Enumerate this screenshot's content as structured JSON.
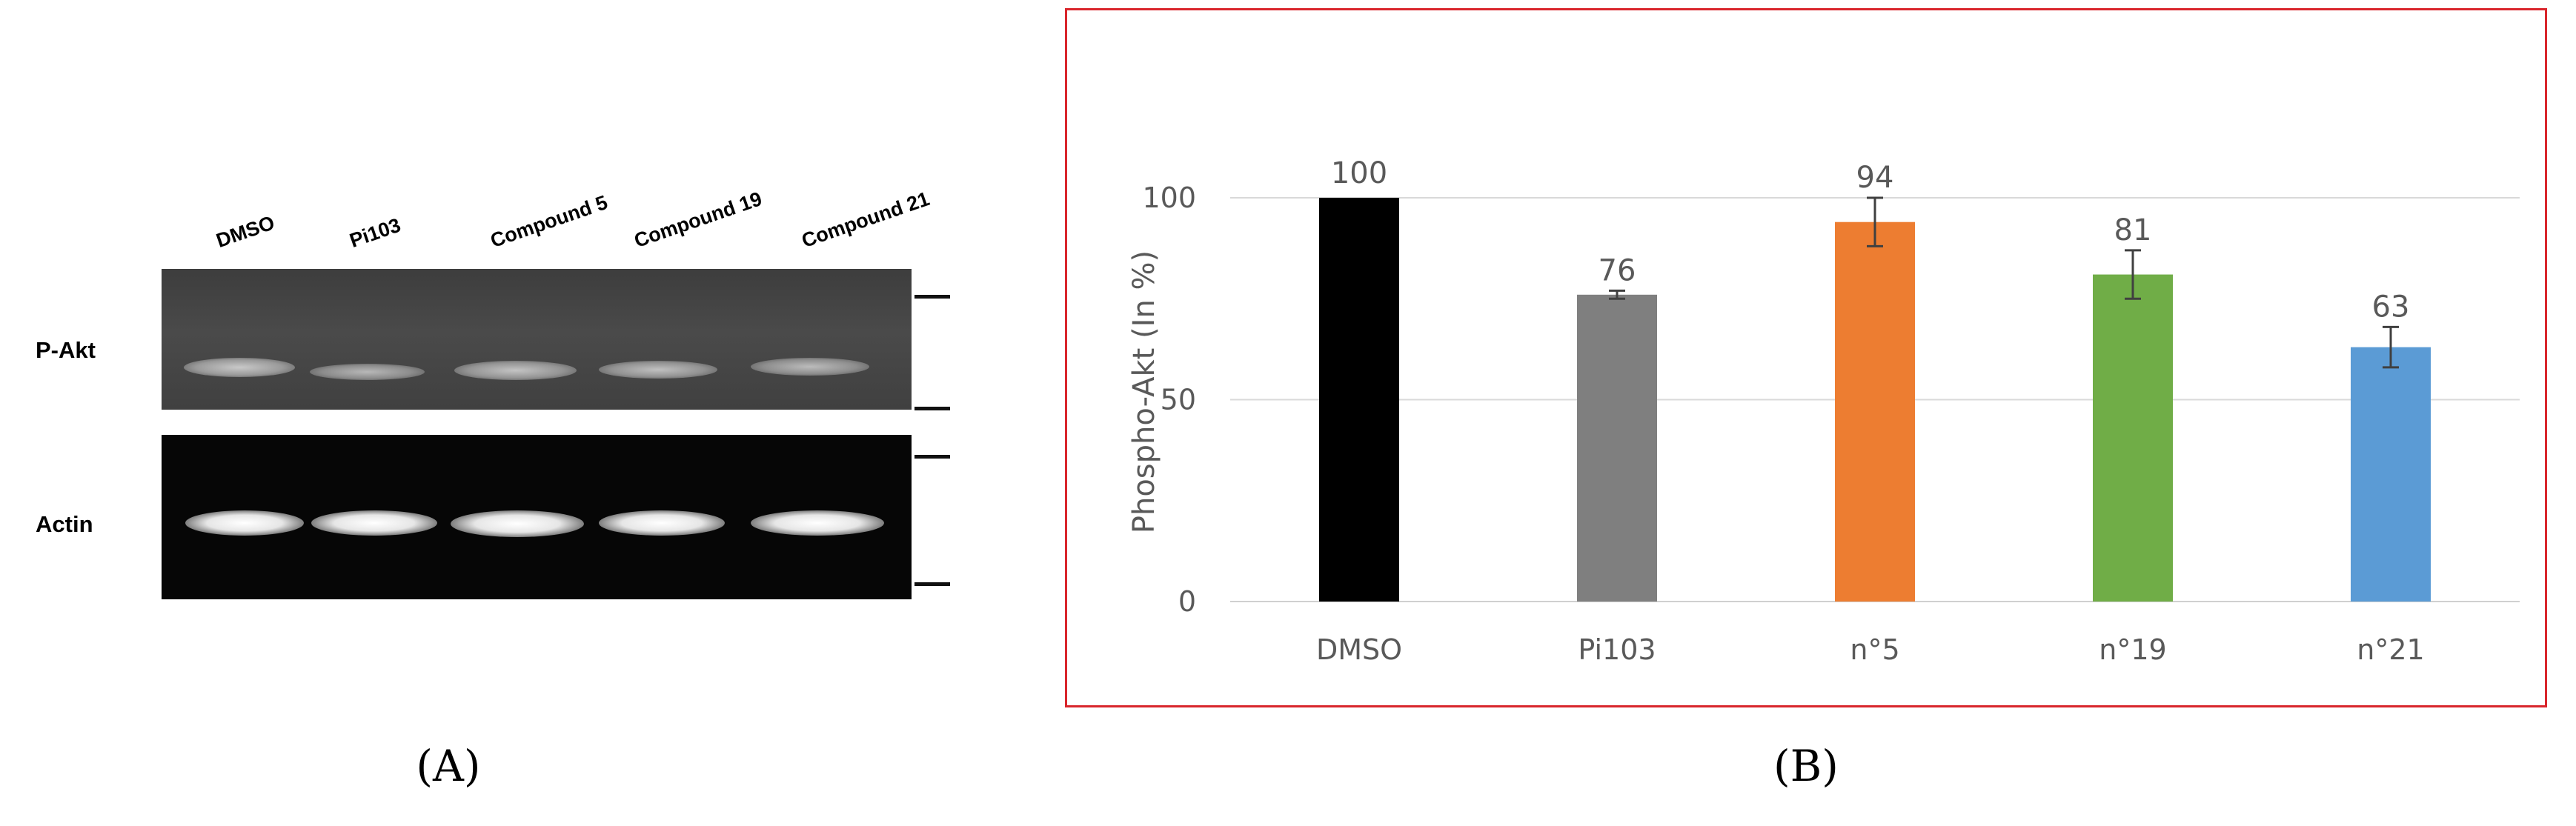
{
  "panel_a": {
    "lanes": [
      "DMSO",
      "Pi103",
      "Compound 5",
      "Compound 19",
      "Compound 21"
    ],
    "rows": [
      "P-Akt",
      "Actin"
    ]
  },
  "panel_labels": {
    "a": "(A)",
    "b": "(B)"
  },
  "chart_data": {
    "type": "bar",
    "categories": [
      "DMSO",
      "Pi103",
      "n°5",
      "n°19",
      "n°21"
    ],
    "values": [
      100,
      76,
      94,
      81,
      63
    ],
    "value_labels": [
      "100",
      "76",
      "94",
      "81",
      "63"
    ],
    "errors": [
      0,
      1,
      6,
      6,
      5
    ],
    "colors": [
      "#000000",
      "#7f7f7f",
      "#ed7d31",
      "#70ad47",
      "#5b9bd5"
    ],
    "ylabel": "Phospho-Akt (In %)",
    "xlabel": "",
    "title": "",
    "yticks": [
      0,
      50,
      100
    ],
    "ylim": [
      0,
      100
    ],
    "grid": true,
    "frame_color": "#d9262c"
  }
}
